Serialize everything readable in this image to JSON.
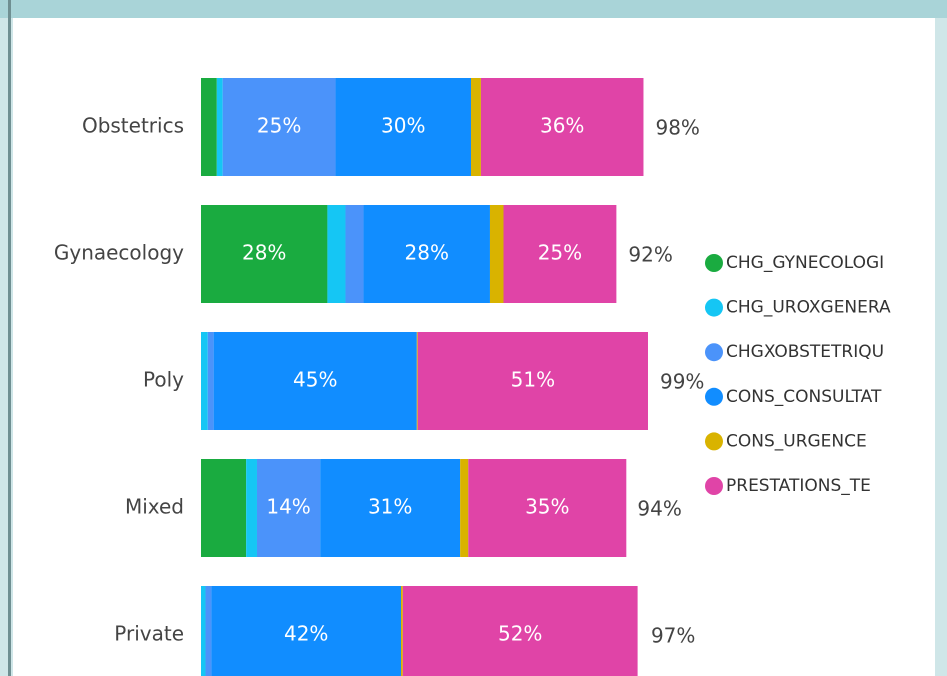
{
  "chart_data": {
    "type": "stacked-bar-horizontal",
    "categories": [
      "Obstetrics",
      "Gynaecology",
      "Poly",
      "Mixed",
      "Private"
    ],
    "xlim": [
      0,
      100
    ],
    "series": [
      {
        "name": "CHG_GYNECOLOGI",
        "color": "#1aab40",
        "values": [
          3.5,
          28,
          0,
          10,
          0
        ],
        "value_labels": [
          null,
          "28%",
          null,
          null,
          null
        ]
      },
      {
        "name": "CHG_UROXGENERA",
        "color": "#15c6f4",
        "values": [
          1.3,
          4,
          1.5,
          2.4,
          1
        ],
        "value_labels": [
          null,
          null,
          null,
          null,
          null
        ]
      },
      {
        "name": "CHGXOBSTETRIQU",
        "color": "#4b93fa",
        "values": [
          25,
          4,
          1.3,
          14,
          1.3
        ],
        "value_labels": [
          "25%",
          null,
          null,
          "14%",
          null
        ]
      },
      {
        "name": "CONS_CONSULTAT",
        "color": "#118dff",
        "values": [
          30,
          28,
          45,
          31,
          42
        ],
        "value_labels": [
          "30%",
          "28%",
          "45%",
          "31%",
          "42%"
        ]
      },
      {
        "name": "CONS_URGENCE",
        "color": "#d9b300",
        "values": [
          2.2,
          3,
          0.2,
          1.8,
          0.4
        ],
        "value_labels": [
          null,
          null,
          null,
          null,
          null
        ]
      },
      {
        "name": "PRESTATIONS_TE",
        "color": "#e044a7",
        "values": [
          36,
          25,
          51,
          35,
          52
        ],
        "value_labels": [
          "36%",
          "25%",
          "51%",
          "35%",
          "52%"
        ]
      }
    ],
    "totals": [
      98,
      92,
      99,
      94,
      97
    ],
    "total_labels": [
      "98%",
      "92%",
      "99%",
      "94%",
      "97%"
    ]
  }
}
